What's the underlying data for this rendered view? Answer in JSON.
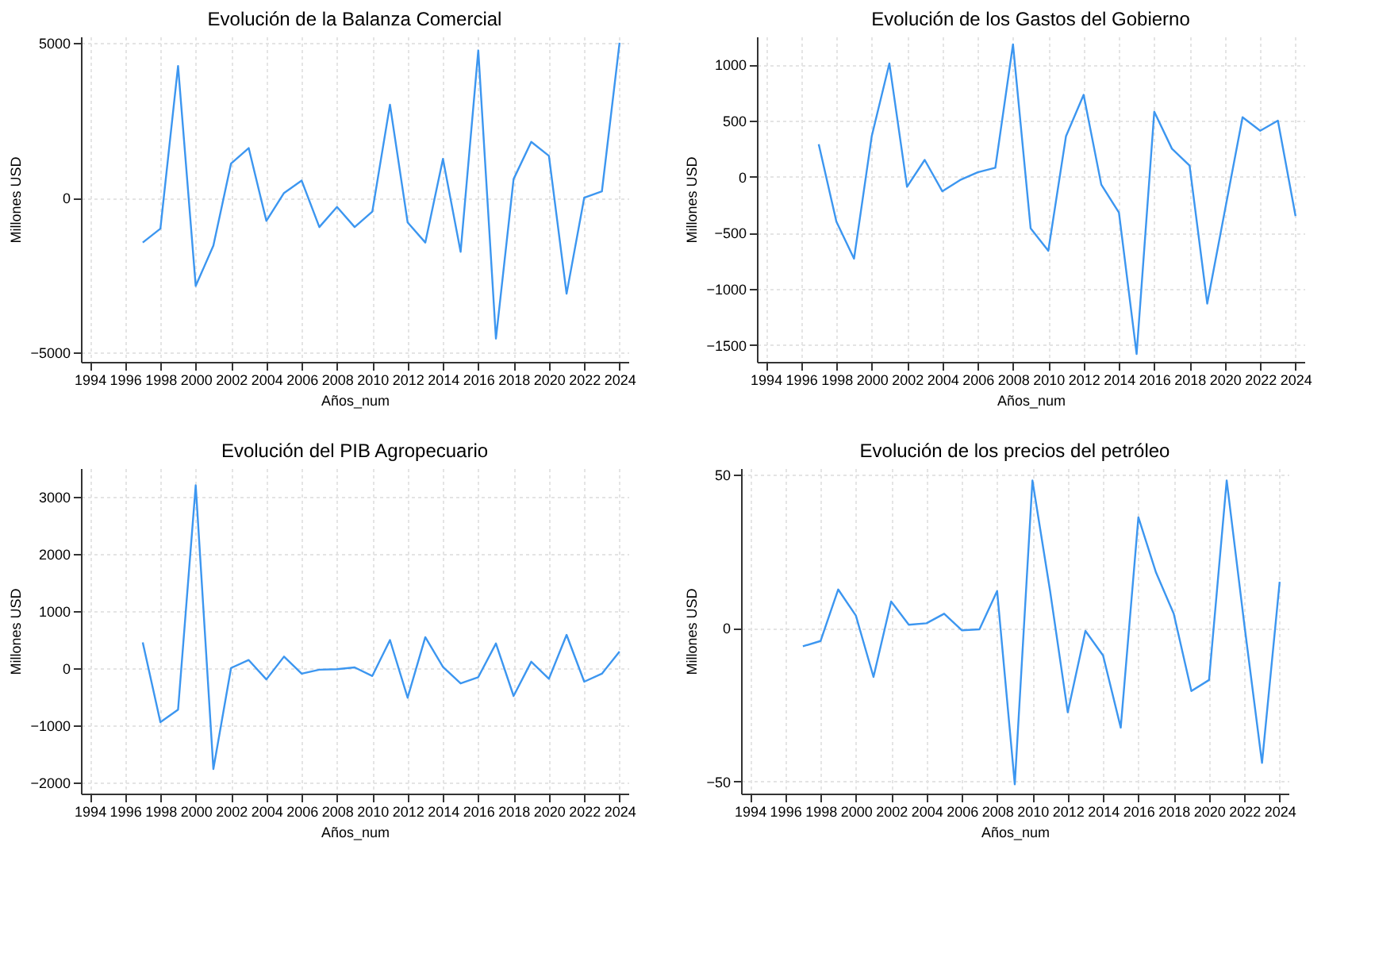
{
  "chart_data": [
    {
      "type": "line",
      "title": "Evolución de la Balanza Comercial",
      "xlabel": "Años_num",
      "ylabel": "Millones USD",
      "grid": true,
      "xlim": [
        1993.5,
        2024.5
      ],
      "xticks": [
        1994,
        1996,
        1998,
        2000,
        2002,
        2004,
        2006,
        2008,
        2010,
        2012,
        2014,
        2016,
        2018,
        2020,
        2022,
        2024
      ],
      "ylim": [
        -5300,
        5200
      ],
      "yticks": [
        -5000,
        0,
        5000
      ],
      "x": [
        1997,
        1998,
        1999,
        2000,
        2001,
        2002,
        2003,
        2004,
        2005,
        2006,
        2007,
        2008,
        2009,
        2010,
        2011,
        2012,
        2013,
        2014,
        2015,
        2016,
        2017,
        2018,
        2019,
        2020,
        2021,
        2022,
        2023,
        2024
      ],
      "series": [
        {
          "color": "#3c96f0",
          "values": [
            -1450,
            -1000,
            4250,
            -2850,
            -1550,
            1100,
            1600,
            -750,
            150,
            550,
            -950,
            -300,
            -950,
            -450,
            3000,
            -800,
            -1450,
            1250,
            -1750,
            4750,
            -4550,
            600,
            1800,
            1350,
            -3100,
            0,
            200,
            5000
          ]
        }
      ]
    },
    {
      "type": "line",
      "title": "Evolución de los Gastos del Gobierno",
      "xlabel": "Años_num",
      "ylabel": "Millones USD",
      "grid": true,
      "xlim": [
        1993.5,
        2024.5
      ],
      "xticks": [
        1994,
        1996,
        1998,
        2000,
        2002,
        2004,
        2006,
        2008,
        2010,
        2012,
        2014,
        2016,
        2018,
        2020,
        2022,
        2024
      ],
      "ylim": [
        -1650,
        1250
      ],
      "yticks": [
        -1500,
        -1000,
        -500,
        0,
        500,
        1000
      ],
      "x": [
        1997,
        1998,
        1999,
        2000,
        2001,
        2002,
        2003,
        2004,
        2005,
        2006,
        2007,
        2008,
        2009,
        2010,
        2011,
        2012,
        2013,
        2014,
        2015,
        2016,
        2017,
        2018,
        2019,
        2020,
        2021,
        2022,
        2023,
        2024
      ],
      "series": [
        {
          "color": "#3c96f0",
          "values": [
            290,
            -400,
            -730,
            360,
            1010,
            -90,
            150,
            -130,
            -30,
            40,
            80,
            1180,
            -460,
            -660,
            360,
            730,
            -70,
            -320,
            -1580,
            580,
            250,
            100,
            -1130,
            -300,
            530,
            410,
            500,
            -350
          ]
        }
      ]
    },
    {
      "type": "line",
      "title": "Evolución del PIB Agropecuario",
      "xlabel": "Años_num",
      "ylabel": "Millones USD",
      "grid": true,
      "xlim": [
        1993.5,
        2024.5
      ],
      "xticks": [
        1994,
        1996,
        1998,
        2000,
        2002,
        2004,
        2006,
        2008,
        2010,
        2012,
        2014,
        2016,
        2018,
        2020,
        2022,
        2024
      ],
      "ylim": [
        -2200,
        3500
      ],
      "yticks": [
        -2000,
        -1000,
        0,
        1000,
        2000,
        3000
      ],
      "x": [
        1997,
        1998,
        1999,
        2000,
        2001,
        2002,
        2003,
        2004,
        2005,
        2006,
        2007,
        2008,
        2009,
        2010,
        2011,
        2012,
        2013,
        2014,
        2015,
        2016,
        2017,
        2018,
        2019,
        2020,
        2021,
        2022,
        2023,
        2024
      ],
      "series": [
        {
          "color": "#3c96f0",
          "values": [
            450,
            -950,
            -730,
            3200,
            -1770,
            0,
            140,
            -200,
            200,
            -100,
            -30,
            -20,
            10,
            -140,
            490,
            -520,
            540,
            20,
            -270,
            -160,
            430,
            -490,
            110,
            -190,
            580,
            -240,
            -100,
            290
          ]
        }
      ]
    },
    {
      "type": "line",
      "title": "Evolución de los precios del petróleo",
      "xlabel": "Años_num",
      "ylabel": "Millones USD",
      "grid": true,
      "xlim": [
        1993.5,
        2024.5
      ],
      "xticks": [
        1994,
        1996,
        1998,
        2000,
        2002,
        2004,
        2006,
        2008,
        2010,
        2012,
        2014,
        2016,
        2018,
        2020,
        2022,
        2024
      ],
      "ylim": [
        -54,
        52
      ],
      "yticks": [
        -50,
        0,
        50
      ],
      "x": [
        1997,
        1998,
        1999,
        2000,
        2001,
        2002,
        2003,
        2004,
        2005,
        2006,
        2007,
        2008,
        2009,
        2010,
        2011,
        2012,
        2013,
        2014,
        2015,
        2016,
        2017,
        2018,
        2019,
        2020,
        2021,
        2022,
        2023,
        2024
      ],
      "series": [
        {
          "color": "#3c96f0",
          "values": [
            -6,
            -4.3,
            12.5,
            4,
            -16,
            8.6,
            1,
            1.5,
            4.6,
            -0.8,
            -0.5,
            12,
            -51,
            48,
            12,
            -27.5,
            -1,
            -9,
            -32.5,
            36,
            18,
            4.6,
            -20.6,
            -17,
            48,
            1,
            -44,
            15
          ]
        }
      ]
    }
  ]
}
